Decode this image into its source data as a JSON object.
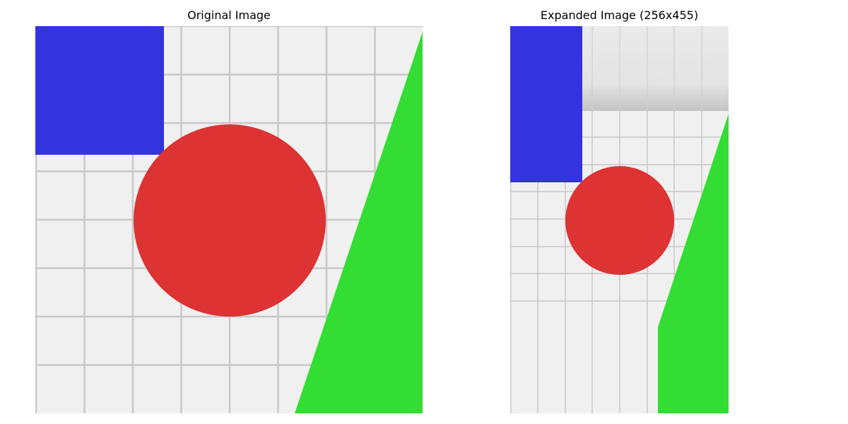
{
  "panels": {
    "original": {
      "title": "Original Image"
    },
    "expanded": {
      "title": "Expanded Image (256x455)"
    }
  },
  "colors": {
    "background": "#f0f0f0",
    "grid": "#c8c8c8",
    "square": "#3433e0",
    "circle": "#dd3333",
    "triangle": "#33dd33",
    "stretched_band": "#e6e6e6",
    "stretched_band_shadow": "#c3c3c3"
  },
  "shapes": {
    "square": "blue-square",
    "circle": "red-circle",
    "triangle": "green-triangle"
  }
}
